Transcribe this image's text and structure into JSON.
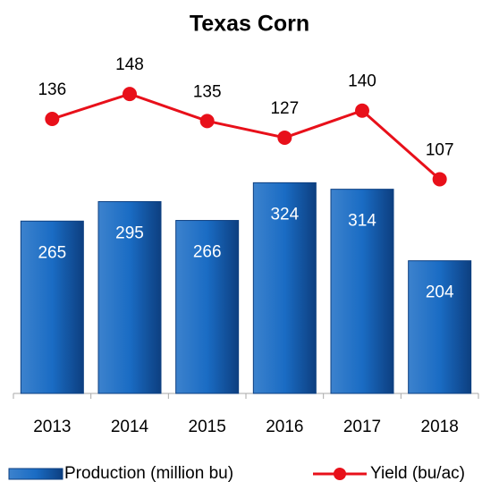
{
  "chart_data": {
    "type": "bar",
    "title": "Texas Corn",
    "categories": [
      "2013",
      "2014",
      "2015",
      "2016",
      "2017",
      "2018"
    ],
    "series": [
      {
        "name": "Production (million bu)",
        "type": "bar",
        "color": "#1a6cc4",
        "values": [
          265,
          295,
          266,
          324,
          314,
          204
        ]
      },
      {
        "name": "Yield (bu/ac)",
        "type": "line",
        "axis": "y2",
        "color": "#e8101a",
        "values": [
          136,
          148,
          135,
          127,
          140,
          107
        ]
      }
    ],
    "ylim": [
      0,
      550
    ],
    "y2lim": [
      4,
      176
    ]
  }
}
